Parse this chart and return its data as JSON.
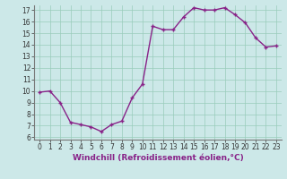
{
  "x": [
    0,
    1,
    2,
    3,
    4,
    5,
    6,
    7,
    8,
    9,
    10,
    11,
    12,
    13,
    14,
    15,
    16,
    17,
    18,
    19,
    20,
    21,
    22,
    23
  ],
  "y": [
    9.9,
    10.0,
    9.0,
    7.3,
    7.1,
    6.9,
    6.5,
    7.1,
    7.4,
    9.4,
    10.6,
    15.6,
    15.3,
    15.3,
    16.4,
    17.2,
    17.0,
    17.0,
    17.2,
    16.6,
    15.9,
    14.6,
    13.8,
    13.9
  ],
  "xlabel": "Windchill (Refroidissement éolien,°C)",
  "xlim_min": -0.5,
  "xlim_max": 23.5,
  "ylim_min": 5.8,
  "ylim_max": 17.4,
  "yticks": [
    6,
    7,
    8,
    9,
    10,
    11,
    12,
    13,
    14,
    15,
    16,
    17
  ],
  "line_color": "#882288",
  "marker": "+",
  "bg_color": "#cce8e8",
  "grid_color": "#99ccbb",
  "xlabel_fontsize": 6.5,
  "tick_fontsize": 5.5,
  "linewidth": 1.0,
  "markersize": 3.5,
  "markeredgewidth": 1.0
}
